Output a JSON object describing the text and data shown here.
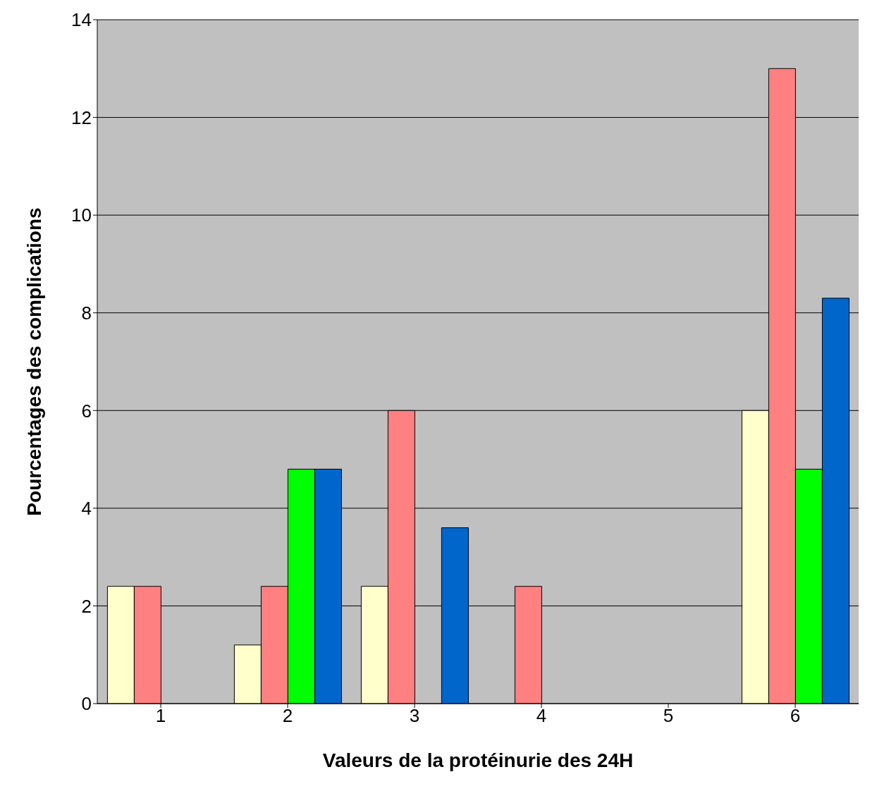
{
  "chart_data": {
    "type": "bar",
    "xlabel": "Valeurs de la protéinurie des 24H",
    "ylabel": "Pourcentages des complications",
    "categories": [
      "1",
      "2",
      "3",
      "4",
      "5",
      "6"
    ],
    "series": [
      {
        "color": "#ffffcc",
        "values": [
          2.4,
          1.2,
          2.4,
          0,
          0,
          6
        ]
      },
      {
        "color": "#ff8080",
        "values": [
          2.4,
          2.4,
          6,
          2.4,
          0,
          13
        ]
      },
      {
        "color": "#00ff00",
        "values": [
          0,
          4.8,
          0,
          0,
          0,
          4.8
        ]
      },
      {
        "color": "#0066cc",
        "values": [
          0,
          4.8,
          3.6,
          0,
          0,
          8.3
        ]
      }
    ],
    "ylim": [
      0,
      14
    ],
    "yticks": [
      0,
      2,
      4,
      6,
      8,
      10,
      12,
      14
    ],
    "grid": "y",
    "legend": false
  }
}
